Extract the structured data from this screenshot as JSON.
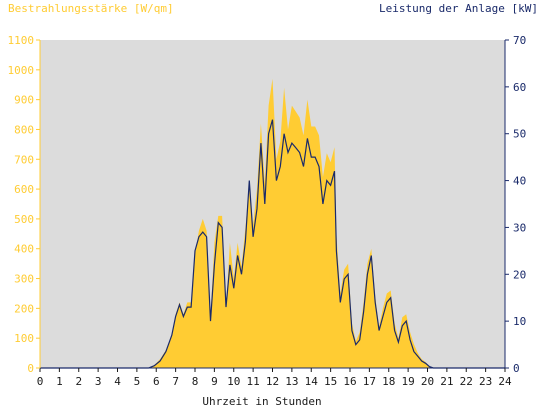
{
  "chart_data": {
    "type": "area",
    "title_left": "Bestrahlungsstärke [W/qm]",
    "title_right": "Leistung der Anlage [kW]",
    "xlabel": "Uhrzeit in Stunden",
    "xlim": [
      0,
      24
    ],
    "xticks": [
      "0",
      "1",
      "2",
      "3",
      "4",
      "5",
      "6",
      "7",
      "8",
      "9",
      "10",
      "11",
      "12",
      "13",
      "14",
      "15",
      "16",
      "17",
      "18",
      "19",
      "20",
      "21",
      "22",
      "23",
      "24"
    ],
    "y_left": {
      "lim": [
        0,
        1100
      ],
      "ticks": [
        "0",
        "100",
        "200",
        "300",
        "400",
        "500",
        "600",
        "700",
        "800",
        "900",
        "1000",
        "1100"
      ]
    },
    "y_right": {
      "lim": [
        0,
        70
      ],
      "ticks": [
        "0",
        "10",
        "20",
        "30",
        "40",
        "50",
        "60",
        "70"
      ]
    },
    "grid": false,
    "series": [
      {
        "color": "#ffcc33",
        "axis": "left",
        "x": [
          0,
          5.6,
          5.9,
          6.2,
          6.5,
          6.8,
          7.0,
          7.2,
          7.4,
          7.6,
          7.8,
          8.0,
          8.2,
          8.4,
          8.6,
          8.8,
          9.0,
          9.2,
          9.4,
          9.6,
          9.8,
          10.0,
          10.2,
          10.4,
          10.6,
          10.8,
          11.0,
          11.2,
          11.4,
          11.6,
          11.8,
          12.0,
          12.2,
          12.4,
          12.6,
          12.8,
          13.0,
          13.2,
          13.4,
          13.6,
          13.8,
          14.0,
          14.2,
          14.4,
          14.6,
          14.8,
          15.0,
          15.2,
          15.3,
          15.5,
          15.7,
          15.9,
          16.1,
          16.3,
          16.5,
          16.7,
          16.9,
          17.1,
          17.3,
          17.5,
          17.7,
          17.9,
          18.1,
          18.3,
          18.5,
          18.7,
          18.9,
          19.1,
          19.3,
          19.5,
          19.7,
          19.9,
          20.1,
          20.3,
          24
        ],
        "values": [
          0,
          0,
          10,
          30,
          60,
          110,
          180,
          220,
          180,
          220,
          220,
          380,
          460,
          500,
          460,
          170,
          420,
          510,
          510,
          200,
          420,
          300,
          420,
          340,
          470,
          620,
          480,
          600,
          820,
          620,
          880,
          970,
          700,
          760,
          940,
          800,
          880,
          860,
          840,
          780,
          900,
          810,
          810,
          780,
          640,
          720,
          690,
          740,
          450,
          250,
          330,
          350,
          150,
          90,
          120,
          220,
          350,
          400,
          240,
          140,
          200,
          250,
          260,
          150,
          100,
          170,
          180,
          120,
          80,
          50,
          30,
          20,
          5,
          0,
          0
        ]
      },
      {
        "color": "#1a2a6a",
        "axis": "right",
        "x": [
          0,
          5.6,
          5.9,
          6.2,
          6.5,
          6.8,
          7.0,
          7.2,
          7.4,
          7.6,
          7.8,
          8.0,
          8.2,
          8.4,
          8.6,
          8.8,
          9.0,
          9.2,
          9.4,
          9.6,
          9.8,
          10.0,
          10.2,
          10.4,
          10.6,
          10.8,
          11.0,
          11.2,
          11.4,
          11.6,
          11.8,
          12.0,
          12.2,
          12.4,
          12.6,
          12.8,
          13.0,
          13.2,
          13.4,
          13.6,
          13.8,
          14.0,
          14.2,
          14.4,
          14.6,
          14.8,
          15.0,
          15.2,
          15.3,
          15.5,
          15.7,
          15.9,
          16.1,
          16.3,
          16.5,
          16.7,
          16.9,
          17.1,
          17.3,
          17.5,
          17.7,
          17.9,
          18.1,
          18.3,
          18.5,
          18.7,
          18.9,
          19.1,
          19.3,
          19.5,
          19.7,
          19.9,
          20.1,
          20.3,
          24
        ],
        "values": [
          0,
          0,
          0.5,
          1.5,
          3.5,
          7,
          11,
          13.5,
          11,
          13,
          13,
          25,
          28,
          29,
          28,
          10,
          22,
          31,
          30,
          13,
          22,
          17,
          24,
          20,
          27,
          40,
          28,
          34,
          48,
          35,
          50,
          53,
          40,
          43,
          50,
          46,
          48,
          47,
          46,
          43,
          49,
          45,
          45,
          43,
          35,
          40,
          39,
          42,
          25,
          14,
          19,
          20,
          8,
          5,
          6,
          12,
          20,
          24,
          14,
          8,
          11,
          14,
          15,
          8,
          5.5,
          9,
          10,
          6,
          3.5,
          2.5,
          1.5,
          1,
          0.3,
          0,
          0
        ]
      }
    ]
  }
}
